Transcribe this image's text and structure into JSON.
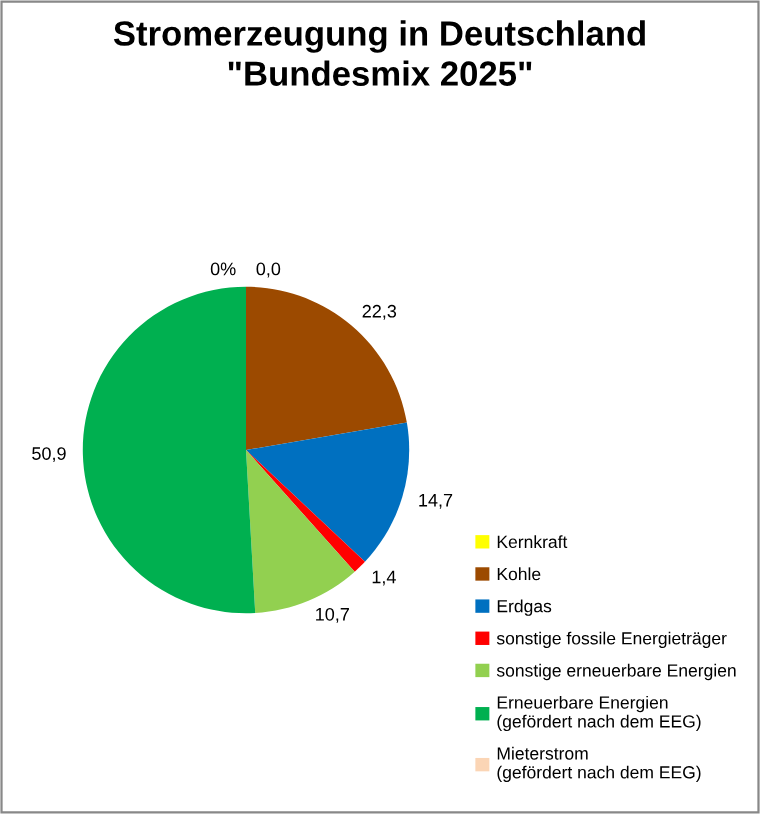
{
  "chart_data": {
    "type": "pie",
    "title": "Stromerzeugung in Deutschland\n\"Bundesmix 2025\"",
    "categories": [
      "Kernkraft",
      "Kohle",
      "Erdgas",
      "sonstige fossile Energieträger",
      "sonstige erneuerbare Energien",
      "Erneuerbare Energien\n(gefördert nach dem EEG)",
      "Mieterstrom\n(gefördert nach dem EEG)"
    ],
    "values": [
      0.0,
      22.3,
      14.7,
      1.4,
      10.7,
      50.9,
      0
    ],
    "value_labels": [
      "0,0",
      "22,3",
      "14,7",
      "1,4",
      "10,7",
      "50,9",
      "0%"
    ],
    "colors": [
      "#ffff00",
      "#9c4a00",
      "#0070c0",
      "#ff0000",
      "#92d050",
      "#00b050",
      "#fbd5b5"
    ],
    "legend": "bottom right"
  }
}
